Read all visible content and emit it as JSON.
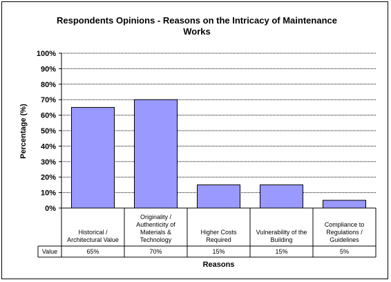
{
  "chart_data": {
    "type": "bar",
    "title": "Respondents Opinions - Reasons on the Intricacy of Maintenance Works",
    "ylabel": "Percentage (%)",
    "xlabel": "Reasons",
    "categories": [
      [
        "Historical /",
        "Architectural Value"
      ],
      [
        "Originality /",
        "Authenticity of",
        "Materials &",
        "Technology"
      ],
      [
        "Higher Costs",
        "Required"
      ],
      [
        "Vulnerability of the",
        "Building"
      ],
      [
        "Compliance to",
        "Regulations /",
        "Guidelines"
      ]
    ],
    "series": [
      {
        "name": "Value",
        "values": [
          65,
          70,
          15,
          15,
          5
        ]
      }
    ],
    "value_labels": [
      "65%",
      "70%",
      "15%",
      "15%",
      "5%"
    ],
    "yticks": [
      "0%",
      "10%",
      "20%",
      "30%",
      "40%",
      "50%",
      "60%",
      "70%",
      "80%",
      "90%",
      "100%"
    ],
    "ylim": [
      0,
      100
    ],
    "grid": true,
    "data_table": true,
    "bar_color": "#9999ff"
  }
}
